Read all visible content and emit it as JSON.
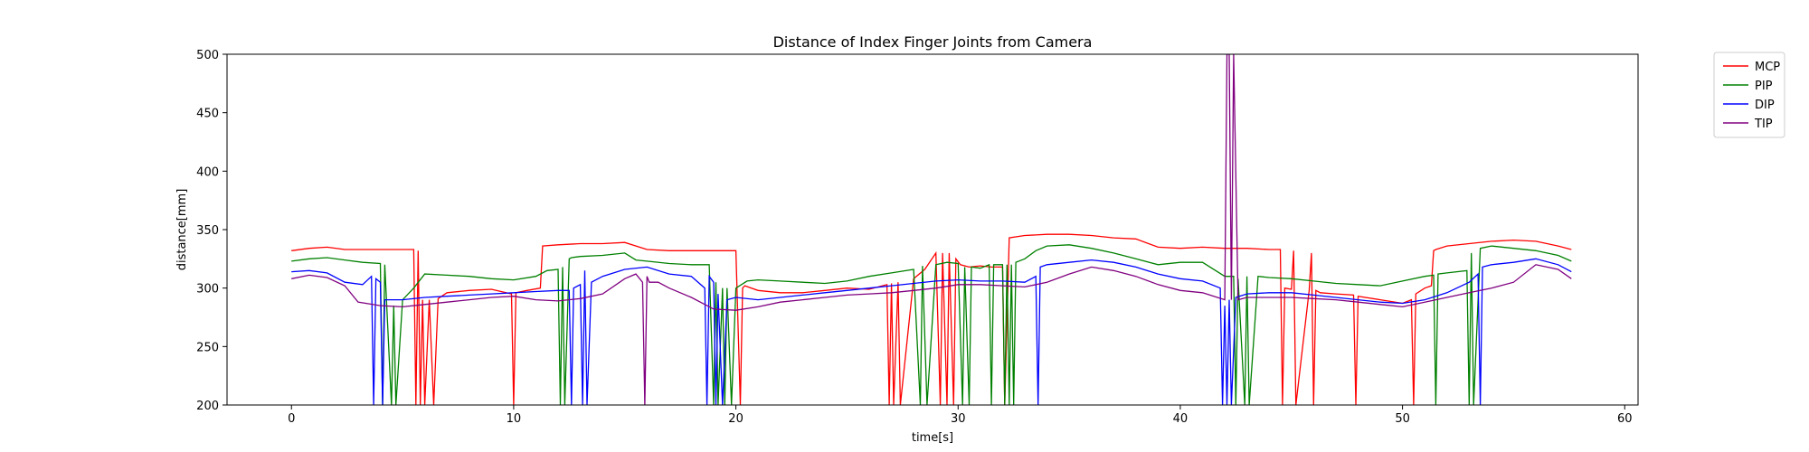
{
  "chart_data": {
    "type": "line",
    "title": "Distance of Index Finger Joints from Camera",
    "xlabel": "time[s]",
    "ylabel": "distance[mm]",
    "xlim": [
      -2.9,
      60.6
    ],
    "ylim": [
      200,
      500
    ],
    "xticks": [
      0,
      10,
      20,
      30,
      40,
      50,
      60
    ],
    "yticks": [
      200,
      250,
      300,
      350,
      400,
      450,
      500
    ],
    "grid": false,
    "legend_position": "outside-top-right",
    "series": [
      {
        "name": "MCP",
        "color": "#ff0000",
        "x": [
          0,
          0.8,
          1.6,
          2.4,
          3.2,
          4.0,
          4.8,
          5.5,
          5.6,
          5.7,
          5.8,
          5.9,
          6.0,
          6.2,
          6.4,
          6.6,
          7.0,
          8.0,
          9.0,
          9.9,
          10.0,
          10.1,
          10.6,
          11.2,
          11.3,
          12.0,
          13.0,
          14.0,
          15.0,
          16.0,
          17.0,
          18.0,
          19.0,
          20.0,
          20.2,
          20.3,
          20.4,
          21.0,
          22.0,
          23.0,
          24.0,
          25.0,
          26.0,
          26.8,
          26.9,
          27.0,
          27.1,
          27.3,
          27.4,
          28.0,
          28.5,
          29.0,
          29.2,
          29.3,
          29.5,
          29.6,
          29.8,
          29.9,
          30.1,
          30.5,
          31.0,
          31.5,
          32.0,
          32.1,
          32.3,
          33.0,
          34.0,
          35.0,
          36.0,
          37.0,
          38.0,
          39.0,
          40.0,
          41.0,
          42.0,
          43.0,
          44.0,
          44.5,
          44.6,
          44.7,
          45.0,
          45.1,
          45.2,
          45.8,
          45.9,
          46.0,
          46.1,
          46.3,
          47.0,
          47.8,
          47.9,
          48.0,
          49.0,
          50.0,
          50.4,
          50.5,
          50.6,
          51.0,
          51.3,
          51.4,
          51.5,
          52.0,
          53.0,
          54.0,
          55.0,
          56.0,
          57.0,
          57.6
        ],
        "y": [
          332,
          334,
          335,
          333,
          333,
          333,
          333,
          333,
          200,
          332,
          200,
          290,
          200,
          290,
          200,
          291,
          296,
          298,
          299,
          295,
          200,
          296,
          298,
          300,
          336,
          337,
          338,
          338,
          339,
          333,
          332,
          332,
          332,
          332,
          200,
          300,
          302,
          298,
          296,
          296,
          298,
          300,
          299,
          303,
          200,
          304,
          200,
          305,
          200,
          308,
          316,
          330,
          200,
          330,
          200,
          330,
          200,
          325,
          320,
          318,
          319,
          318,
          318,
          200,
          343,
          345,
          346,
          346,
          345,
          343,
          342,
          335,
          334,
          335,
          334,
          334,
          333,
          333,
          200,
          300,
          299,
          332,
          200,
          298,
          330,
          200,
          298,
          296,
          295,
          294,
          200,
          293,
          290,
          287,
          290,
          200,
          295,
          300,
          302,
          332,
          333,
          336,
          338,
          340,
          341,
          340,
          336,
          333
        ]
      },
      {
        "name": "PIP",
        "color": "#008000",
        "x": [
          0,
          0.8,
          1.6,
          2.4,
          3.2,
          4.0,
          4.1,
          4.2,
          4.5,
          4.6,
          4.7,
          5.0,
          5.5,
          6.0,
          7.0,
          8.0,
          9.0,
          10.0,
          11.0,
          11.5,
          12.0,
          12.1,
          12.2,
          12.3,
          12.5,
          12.6,
          13.0,
          14.0,
          15.0,
          15.5,
          16.0,
          17.0,
          18.0,
          18.8,
          19.0,
          19.1,
          19.2,
          19.4,
          19.5,
          19.6,
          19.8,
          20.0,
          20.5,
          21.0,
          22.0,
          23.0,
          24.0,
          25.0,
          26.0,
          27.0,
          28.0,
          28.3,
          28.4,
          28.6,
          29.0,
          29.5,
          30.0,
          30.2,
          30.3,
          30.5,
          30.6,
          31.0,
          31.4,
          31.5,
          31.6,
          32.0,
          32.1,
          32.2,
          32.3,
          32.4,
          32.5,
          32.6,
          33.0,
          33.5,
          34.0,
          35.0,
          36.0,
          37.0,
          38.0,
          39.0,
          40.0,
          41.0,
          42.0,
          42.4,
          42.5,
          42.6,
          42.9,
          43.0,
          43.1,
          43.5,
          44.0,
          45.0,
          46.0,
          47.0,
          48.0,
          49.0,
          50.0,
          51.0,
          51.4,
          51.5,
          51.6,
          52.0,
          52.9,
          53.0,
          53.1,
          53.2,
          53.5,
          54.0,
          55.0,
          56.0,
          57.0,
          57.6
        ],
        "y": [
          323,
          325,
          326,
          324,
          322,
          321,
          200,
          320,
          200,
          285,
          200,
          290,
          300,
          312,
          311,
          310,
          308,
          307,
          310,
          315,
          316,
          200,
          318,
          200,
          325,
          326,
          327,
          328,
          330,
          324,
          323,
          321,
          320,
          320,
          200,
          305,
          200,
          300,
          200,
          300,
          200,
          300,
          306,
          307,
          306,
          305,
          304,
          306,
          310,
          313,
          316,
          200,
          319,
          200,
          320,
          322,
          321,
          200,
          318,
          200,
          318,
          317,
          320,
          200,
          320,
          320,
          200,
          320,
          200,
          320,
          200,
          322,
          325,
          332,
          336,
          337,
          334,
          330,
          325,
          320,
          322,
          322,
          310,
          310,
          200,
          308,
          200,
          310,
          200,
          310,
          309,
          308,
          306,
          304,
          303,
          302,
          306,
          310,
          311,
          200,
          312,
          313,
          315,
          200,
          330,
          200,
          334,
          336,
          334,
          332,
          328,
          323
        ]
      },
      {
        "name": "DIP",
        "color": "#0000ff",
        "x": [
          0,
          0.8,
          1.6,
          2.4,
          3.2,
          3.6,
          3.7,
          3.8,
          4.0,
          4.1,
          4.2,
          5.0,
          6.0,
          7.0,
          8.0,
          9.0,
          10.0,
          11.0,
          12.0,
          12.5,
          12.6,
          12.7,
          13.0,
          13.1,
          13.2,
          13.3,
          13.5,
          14.0,
          15.0,
          16.0,
          17.0,
          18.0,
          18.6,
          18.7,
          18.8,
          19.0,
          19.1,
          19.2,
          19.4,
          19.6,
          20.0,
          21.0,
          22.0,
          23.0,
          24.0,
          25.0,
          26.0,
          27.0,
          28.0,
          29.0,
          30.0,
          31.0,
          32.0,
          33.0,
          33.5,
          33.6,
          33.7,
          34.0,
          35.0,
          36.0,
          37.0,
          38.0,
          39.0,
          40.0,
          41.0,
          41.8,
          41.9,
          42.0,
          42.1,
          42.2,
          42.3,
          42.5,
          43.0,
          44.0,
          45.0,
          46.0,
          47.0,
          48.0,
          49.0,
          50.0,
          51.0,
          52.0,
          53.0,
          53.4,
          53.5,
          53.6,
          54.0,
          55.0,
          56.0,
          57.0,
          57.6
        ],
        "y": [
          314,
          315,
          313,
          305,
          303,
          310,
          200,
          308,
          305,
          200,
          290,
          290,
          292,
          293,
          294,
          295,
          296,
          297,
          298,
          298,
          200,
          300,
          303,
          200,
          315,
          200,
          305,
          310,
          316,
          318,
          312,
          310,
          300,
          200,
          310,
          305,
          200,
          295,
          200,
          290,
          292,
          290,
          292,
          294,
          296,
          298,
          300,
          302,
          304,
          306,
          307,
          306,
          306,
          305,
          310,
          200,
          318,
          320,
          322,
          324,
          322,
          318,
          312,
          308,
          306,
          300,
          200,
          285,
          200,
          290,
          200,
          292,
          295,
          296,
          296,
          294,
          292,
          290,
          288,
          287,
          290,
          296,
          305,
          312,
          200,
          318,
          320,
          322,
          325,
          320,
          314
        ]
      },
      {
        "name": "TIP",
        "color": "#800080",
        "x": [
          0,
          0.8,
          1.6,
          2.4,
          3.0,
          4.0,
          5.0,
          6.0,
          7.0,
          8.0,
          9.0,
          10.0,
          11.0,
          12.0,
          13.0,
          14.0,
          15.0,
          15.5,
          15.8,
          15.9,
          16.0,
          16.1,
          16.5,
          17.0,
          18.0,
          19.0,
          20.0,
          21.0,
          22.0,
          23.0,
          24.0,
          25.0,
          26.0,
          27.0,
          28.0,
          29.0,
          30.0,
          31.0,
          32.0,
          33.0,
          34.0,
          35.0,
          36.0,
          37.0,
          38.0,
          39.0,
          40.0,
          41.0,
          42.0,
          42.1,
          42.2,
          42.3,
          42.4,
          42.6,
          43.0,
          44.0,
          45.0,
          46.0,
          47.0,
          48.0,
          49.0,
          50.0,
          51.0,
          52.0,
          53.0,
          54.0,
          55.0,
          56.0,
          57.0,
          57.6
        ],
        "y": [
          308,
          311,
          309,
          302,
          288,
          285,
          284,
          286,
          288,
          290,
          292,
          293,
          290,
          289,
          291,
          295,
          308,
          312,
          305,
          200,
          310,
          305,
          305,
          300,
          292,
          282,
          281,
          284,
          288,
          290,
          292,
          294,
          295,
          296,
          298,
          300,
          303,
          303,
          302,
          301,
          305,
          312,
          318,
          315,
          310,
          303,
          298,
          296,
          290,
          500,
          500,
          290,
          500,
          290,
          292,
          292,
          292,
          291,
          290,
          288,
          286,
          284,
          288,
          292,
          296,
          300,
          305,
          320,
          316,
          308
        ]
      }
    ]
  }
}
